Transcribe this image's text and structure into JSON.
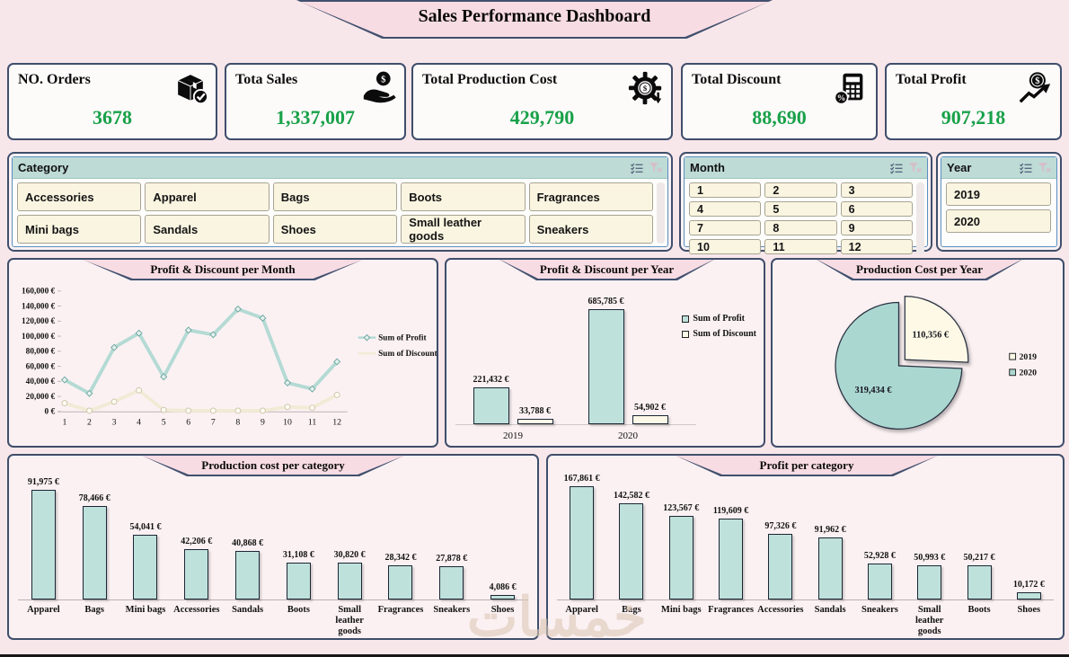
{
  "title": "Sales Performance Dashboard",
  "colors": {
    "page_bg": "#f8e7ea",
    "banner_pink": "#f8dce3",
    "border_navy": "#3f4e6b",
    "value_green": "#18a149",
    "slicer_header_teal": "#bedbd6",
    "slicer_item_cream": "#faf5e1",
    "series_teal": "#bfe1db",
    "series_cream": "#fcf8e7"
  },
  "kpis": [
    {
      "label": "NO. Orders",
      "value": "3678",
      "icon": "package-check-icon"
    },
    {
      "label": "Tota Sales",
      "value": "1,337,007",
      "icon": "hand-coin-icon"
    },
    {
      "label": "Total Production Cost",
      "value": "429,790",
      "icon": "gear-dollar-icon"
    },
    {
      "label": "Total Discount",
      "value": "88,690",
      "icon": "calculator-percent-icon"
    },
    {
      "label": "Total Profit",
      "value": "907,218",
      "icon": "dollar-growth-icon"
    }
  ],
  "slicers": {
    "category": {
      "label": "Category",
      "items": [
        "Accessories",
        "Apparel",
        "Bags",
        "Boots",
        "Fragrances",
        "Mini bags",
        "Sandals",
        "Shoes",
        "Small leather goods",
        "Sneakers"
      ],
      "icons": [
        "multiselect-icon",
        "clear-filter-icon"
      ]
    },
    "month": {
      "label": "Month",
      "items": [
        "1",
        "2",
        "3",
        "4",
        "5",
        "6",
        "7",
        "8",
        "9",
        "10",
        "11",
        "12"
      ],
      "icons": [
        "multiselect-icon",
        "clear-filter-icon"
      ]
    },
    "year": {
      "label": "Year",
      "items": [
        "2019",
        "2020"
      ],
      "icons": [
        "multiselect-icon",
        "clear-filter-icon"
      ]
    }
  },
  "chart_data": [
    {
      "id": "profit_discount_month",
      "type": "line",
      "title": "Profit & Discount per Month",
      "x": [
        "1",
        "2",
        "3",
        "4",
        "5",
        "6",
        "7",
        "8",
        "9",
        "10",
        "11",
        "12"
      ],
      "ylim": [
        0,
        160000
      ],
      "yticks": [
        "0 €",
        "20,000 €",
        "40,000 €",
        "60,000 €",
        "80,000 €",
        "100,000 €",
        "120,000 €",
        "140,000 €",
        "160,000 €"
      ],
      "legend_position": "right",
      "series": [
        {
          "name": "Sum of Profit",
          "color": "#b4dad4",
          "values": [
            42000,
            24000,
            85000,
            104000,
            46000,
            108000,
            102000,
            136000,
            124000,
            38000,
            30000,
            66000
          ]
        },
        {
          "name": "Sum of Discount",
          "color": "#f1ebd6",
          "values": [
            11000,
            1000,
            13000,
            28000,
            2000,
            1000,
            1000,
            1000,
            1000,
            6000,
            5000,
            22000
          ]
        }
      ]
    },
    {
      "id": "profit_discount_year",
      "type": "bar",
      "title": "Profit & Discount per Year",
      "categories": [
        "2019",
        "2020"
      ],
      "legend_position": "right",
      "series": [
        {
          "name": "Sum of Profit",
          "color": "#bfe1db",
          "values": [
            221432,
            685785
          ],
          "labels": [
            "221,432 €",
            "685,785 €"
          ]
        },
        {
          "name": "Sum of Discount",
          "color": "#fcf8e7",
          "values": [
            33788,
            54902
          ],
          "labels": [
            "33,788 €",
            "54,902 €"
          ]
        }
      ]
    },
    {
      "id": "production_cost_year",
      "type": "pie",
      "title": "Production Cost per Year",
      "legend_position": "right",
      "slices": [
        {
          "name": "2019",
          "value": 110356,
          "label": "110,356 €",
          "color": "#fdf9e6",
          "exploded": true
        },
        {
          "name": "2020",
          "value": 319434,
          "label": "319,434 €",
          "color": "#abd7d1",
          "exploded": false
        }
      ]
    },
    {
      "id": "production_cost_category",
      "type": "bar",
      "title": "Production cost per category",
      "categories": [
        "Apparel",
        "Bags",
        "Mini bags",
        "Accessories",
        "Sandals",
        "Boots",
        "Small leather goods",
        "Fragrances",
        "Sneakers",
        "Shoes"
      ],
      "values": [
        91975,
        78466,
        54041,
        42206,
        40868,
        31108,
        30820,
        28342,
        27878,
        4086
      ],
      "labels": [
        "91,975 €",
        "78,466 €",
        "54,041 €",
        "42,206 €",
        "40,868 €",
        "31,108 €",
        "30,820 €",
        "28,342 €",
        "27,878 €",
        "4,086 €"
      ]
    },
    {
      "id": "profit_category",
      "type": "bar",
      "title": "Profit per category",
      "categories": [
        "Apparel",
        "Bags",
        "Mini bags",
        "Fragrances",
        "Accessories",
        "Sandals",
        "Sneakers",
        "Small leather goods",
        "Boots",
        "Shoes"
      ],
      "values": [
        167861,
        142582,
        123567,
        119609,
        97326,
        91962,
        52928,
        50993,
        50217,
        10172
      ],
      "labels": [
        "167,861 €",
        "142,582 €",
        "123,567 €",
        "119,609 €",
        "97,326 €",
        "91,962 €",
        "52,928 €",
        "50,993 €",
        "50,217 €",
        "10,172 €"
      ]
    }
  ],
  "watermark": {
    "text": "خمسات"
  }
}
